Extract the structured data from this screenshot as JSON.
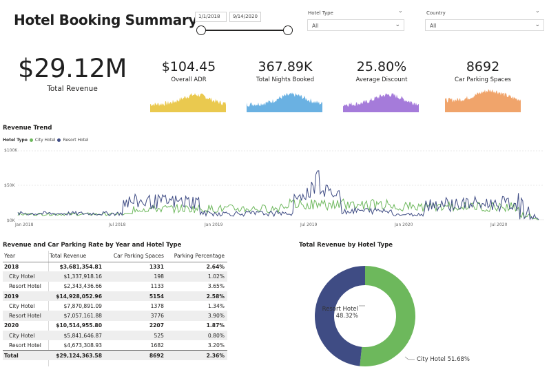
{
  "header": {
    "title": "Hotel Booking Summary",
    "start_date": "1/1/2018",
    "end_date": "9/14/2020"
  },
  "filters": {
    "hotel_type": {
      "label": "Hotel Type",
      "value": "All"
    },
    "country": {
      "label": "Country",
      "value": "All"
    }
  },
  "kpis": {
    "total_revenue": {
      "value": "$29.12M",
      "label": "Total Revenue"
    },
    "overall_adr": {
      "value": "$104.45",
      "label": "Overall ADR",
      "color": "#E8C33C"
    },
    "nights_booked": {
      "value": "367.89K",
      "label": "Total Nights Booked",
      "color": "#5AA8DF"
    },
    "avg_discount": {
      "value": "25.80%",
      "label": "Average Discount",
      "color": "#9B6DD6"
    },
    "parking": {
      "value": "8692",
      "label": "Car Parking Spaces",
      "color": "#EE9A5B"
    }
  },
  "trend": {
    "title": "Revenue Trend",
    "legend_title": "Hotel Type",
    "series": [
      {
        "name": "City Hotel",
        "color": "#6DB85C"
      },
      {
        "name": "Resort Hotel",
        "color": "#3F4C84"
      }
    ],
    "y_ticks": [
      "$100K",
      "$50K",
      "$0K"
    ],
    "x_ticks": [
      "Jan 2018",
      "Jul 2018",
      "Jan 2019",
      "Jul 2019",
      "Jan 2020",
      "Jul 2020"
    ]
  },
  "table": {
    "title": "Revenue and Car Parking Rate by Year and Hotel Type",
    "columns": [
      "Year",
      "Total Revenue",
      "Car Parking Spaces",
      "Parking Percentage"
    ],
    "rows": [
      {
        "type": "year",
        "cells": [
          "2018",
          "$3,681,354.81",
          "1331",
          "2.64%"
        ]
      },
      {
        "type": "sub",
        "cells": [
          "City Hotel",
          "$1,337,918.16",
          "198",
          "1.02%"
        ]
      },
      {
        "type": "sub",
        "cells": [
          "Resort Hotel",
          "$2,343,436.66",
          "1133",
          "3.65%"
        ]
      },
      {
        "type": "year",
        "cells": [
          "2019",
          "$14,928,052.96",
          "5154",
          "2.58%"
        ]
      },
      {
        "type": "sub",
        "cells": [
          "City Hotel",
          "$7,870,891.09",
          "1378",
          "1.34%"
        ]
      },
      {
        "type": "sub",
        "cells": [
          "Resort Hotel",
          "$7,057,161.88",
          "3776",
          "3.90%"
        ]
      },
      {
        "type": "year",
        "cells": [
          "2020",
          "$10,514,955.80",
          "2207",
          "1.87%"
        ]
      },
      {
        "type": "sub",
        "cells": [
          "City Hotel",
          "$5,841,646.87",
          "525",
          "0.80%"
        ]
      },
      {
        "type": "sub",
        "cells": [
          "Resort Hotel",
          "$4,673,308.93",
          "1682",
          "3.20%"
        ]
      },
      {
        "type": "total",
        "cells": [
          "Total",
          "$29,124,363.58",
          "8692",
          "2.36%"
        ]
      }
    ]
  },
  "donut": {
    "title": "Total Revenue by Hotel Type",
    "slices": [
      {
        "name": "City Hotel",
        "pct": 51.68,
        "label": "City Hotel 51.68%",
        "color": "#6DB85C"
      },
      {
        "name": "Resort Hotel",
        "pct": 48.32,
        "label": "Resort Hotel",
        "pct_label": "48.32%",
        "color": "#3F4C84"
      }
    ]
  }
}
